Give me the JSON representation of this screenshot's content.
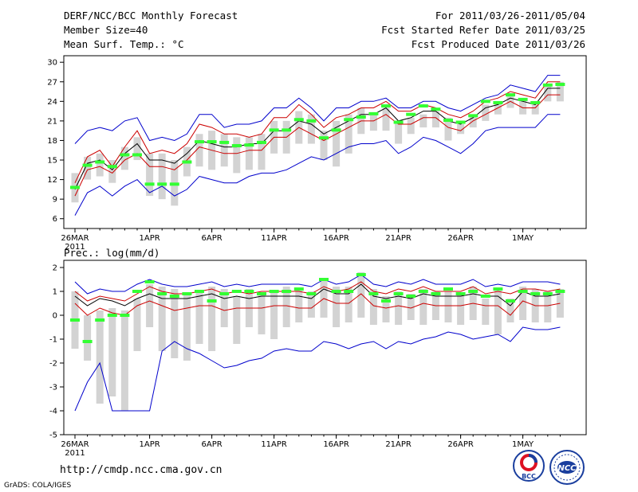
{
  "header": {
    "title": "DERF/NCC/BCC Monthly Forecast",
    "member": "Member Size=40",
    "variable": "Mean Surf. Temp.: °C",
    "period": "For 2011/03/26-2011/05/04",
    "started": "Fcst Started Refer Date 2011/03/25",
    "produced": "Fcst Produced Date 2011/03/26"
  },
  "footer": {
    "url": "http://cmdp.ncc.cma.gov.cn",
    "grads": "GrADS: COLA/IGES",
    "logo_bcc": "BCC",
    "logo_ncc": "NCC"
  },
  "colors": {
    "max_min": "#0000cc",
    "spread": "#cc0000",
    "mean": "#000000",
    "box": "#d3d3d3",
    "median": "#33ff33"
  },
  "chart_data": [
    {
      "type": "line",
      "id": "temp",
      "title": "",
      "ylim": [
        4.5,
        31
      ],
      "yticks": [
        6,
        9,
        12,
        15,
        18,
        21,
        24,
        27,
        30
      ],
      "xticks": [
        {
          "day": 0,
          "label": "26MAR",
          "sub": "2011"
        },
        {
          "day": 6,
          "label": "1APR"
        },
        {
          "day": 11,
          "label": "6APR"
        },
        {
          "day": 16,
          "label": "11APR"
        },
        {
          "day": 21,
          "label": "16APR"
        },
        {
          "day": 26,
          "label": "21APR"
        },
        {
          "day": 31,
          "label": "26APR"
        },
        {
          "day": 36,
          "label": "1MAY"
        }
      ],
      "series": [
        {
          "name": "max",
          "values": [
            17.5,
            19.5,
            20,
            19.5,
            21,
            21.5,
            18,
            18.5,
            18,
            19,
            22,
            22,
            20,
            20.5,
            20.5,
            21,
            23,
            23,
            24.5,
            23,
            21,
            23,
            23,
            24,
            24,
            24.5,
            23,
            23,
            24,
            24,
            23,
            22.5,
            23.5,
            24.5,
            25,
            26.5,
            26,
            25.5,
            28,
            28
          ]
        },
        {
          "name": "upper",
          "values": [
            11.5,
            15.5,
            16.5,
            14,
            17,
            19.5,
            16,
            16.5,
            16,
            17.5,
            20.5,
            20,
            19,
            19,
            18.5,
            19,
            21.5,
            21.5,
            23.5,
            22,
            20,
            21.5,
            22,
            23,
            23,
            24,
            22.5,
            22.5,
            23.5,
            23,
            22,
            21.5,
            22.5,
            24,
            24.5,
            25.5,
            25,
            24.5,
            27,
            27
          ]
        },
        {
          "name": "mean",
          "values": [
            10.5,
            14.5,
            15,
            13.5,
            16,
            17.5,
            15,
            15,
            14.5,
            16,
            18,
            17.5,
            17,
            17,
            17.5,
            17.5,
            19.5,
            19.5,
            21,
            20.5,
            19,
            20,
            21,
            22,
            22,
            23,
            21,
            21.5,
            22.5,
            22.5,
            21,
            20.5,
            21.5,
            23,
            23.5,
            24.5,
            24,
            23.5,
            26,
            26
          ]
        },
        {
          "name": "lower",
          "values": [
            9.5,
            13.5,
            14,
            13,
            15,
            16,
            14,
            14,
            13.5,
            15,
            17,
            16.5,
            16,
            16,
            16.5,
            16.5,
            18.5,
            18.5,
            20,
            19,
            18,
            19,
            20,
            21,
            21,
            22,
            20.5,
            20.5,
            21.5,
            21.5,
            20,
            19.5,
            21,
            22,
            23,
            24,
            23,
            23,
            25,
            25
          ]
        },
        {
          "name": "min",
          "values": [
            6.5,
            10,
            11,
            9.5,
            11,
            12,
            10,
            11,
            9.5,
            10.5,
            12.5,
            12,
            11.5,
            11.5,
            12.5,
            13,
            13,
            13.5,
            14.5,
            15.5,
            15,
            16,
            17,
            17.5,
            17.5,
            18,
            16,
            17,
            18.5,
            18,
            17,
            16,
            17.5,
            19.5,
            20,
            20,
            20,
            20,
            22,
            22
          ]
        },
        {
          "name": "box_high",
          "values": [
            13,
            15.5,
            16,
            15,
            17,
            18.5,
            16,
            16,
            15,
            17,
            19,
            19.5,
            19,
            18.5,
            18.5,
            19,
            21,
            21,
            22.5,
            22,
            19.5,
            21,
            22,
            23,
            22,
            23,
            21,
            21.5,
            22,
            22.5,
            21.5,
            20.5,
            22,
            23.5,
            24,
            25,
            24.5,
            24,
            26.5,
            27
          ]
        },
        {
          "name": "box_low",
          "values": [
            8.5,
            12,
            12.5,
            11.5,
            13.5,
            15,
            9.5,
            9,
            8,
            12.5,
            14,
            13.5,
            14,
            13,
            13.5,
            13.5,
            16,
            16,
            17.5,
            17.5,
            15,
            14,
            16,
            19,
            19.5,
            19.5,
            17.5,
            19,
            20,
            20,
            18,
            19,
            20,
            21,
            22,
            23,
            22,
            22,
            24,
            24
          ]
        },
        {
          "name": "median",
          "values": [
            10.8,
            14.2,
            14.7,
            14,
            15.8,
            15.8,
            11.3,
            11.3,
            11.3,
            14.7,
            17.8,
            17.8,
            17.7,
            17.2,
            17.3,
            17.7,
            19.6,
            19.6,
            21.2,
            21,
            18.4,
            19.6,
            21.2,
            21.6,
            22.1,
            23.3,
            20.8,
            22,
            23.3,
            22.8,
            21.1,
            20.8,
            21.8,
            24,
            23.8,
            25,
            24.3,
            23.8,
            26.5,
            26.6
          ]
        }
      ]
    },
    {
      "type": "line",
      "id": "prec",
      "title": "Prec.: log(mm/d)",
      "ylim": [
        -5,
        2.3
      ],
      "yticks": [
        -5,
        -4,
        -3,
        -2,
        -1,
        0,
        1,
        2
      ],
      "xticks": [
        {
          "day": 0,
          "label": "26MAR",
          "sub": "2011"
        },
        {
          "day": 6,
          "label": "1APR"
        },
        {
          "day": 11,
          "label": "6APR"
        },
        {
          "day": 16,
          "label": "11APR"
        },
        {
          "day": 21,
          "label": "16APR"
        },
        {
          "day": 26,
          "label": "21APR"
        },
        {
          "day": 31,
          "label": "26APR"
        },
        {
          "day": 36,
          "label": "1MAY"
        }
      ],
      "series": [
        {
          "name": "max",
          "values": [
            1.4,
            0.9,
            1.1,
            1,
            1,
            1.3,
            1.5,
            1.3,
            1.2,
            1.2,
            1.3,
            1.4,
            1.2,
            1.3,
            1.2,
            1.3,
            1.3,
            1.3,
            1.3,
            1.2,
            1.5,
            1.3,
            1.4,
            1.7,
            1.3,
            1.2,
            1.4,
            1.3,
            1.5,
            1.3,
            1.3,
            1.3,
            1.5,
            1.2,
            1.3,
            1.2,
            1.4,
            1.4,
            1.4,
            1.3
          ]
        },
        {
          "name": "upper",
          "values": [
            1,
            0.6,
            0.8,
            0.7,
            0.6,
            0.9,
            1.2,
            1,
            0.9,
            0.9,
            1,
            1.1,
            0.9,
            1,
            0.9,
            1,
            1,
            1,
            1,
            0.9,
            1.2,
            1,
            1.1,
            1.4,
            1,
            0.9,
            1.1,
            1,
            1.2,
            1,
            1,
            1,
            1.2,
            0.9,
            1,
            0.9,
            1.1,
            1.1,
            1,
            1.1
          ]
        },
        {
          "name": "mean",
          "values": [
            0.8,
            0.4,
            0.7,
            0.6,
            0.4,
            0.7,
            0.9,
            0.7,
            0.7,
            0.7,
            0.8,
            0.9,
            0.7,
            0.8,
            0.7,
            0.8,
            0.8,
            0.8,
            0.8,
            0.7,
            1.1,
            0.9,
            0.9,
            1.3,
            0.8,
            0.7,
            0.8,
            0.7,
            0.9,
            0.8,
            0.8,
            0.8,
            0.9,
            0.8,
            0.8,
            0.4,
            1,
            0.8,
            0.8,
            0.9
          ]
        },
        {
          "name": "lower",
          "values": [
            0.5,
            0,
            0.3,
            0.1,
            0,
            0.4,
            0.6,
            0.4,
            0.2,
            0.3,
            0.4,
            0.4,
            0.2,
            0.3,
            0.3,
            0.3,
            0.4,
            0.4,
            0.3,
            0.3,
            0.7,
            0.5,
            0.5,
            0.9,
            0.4,
            0.3,
            0.4,
            0.3,
            0.5,
            0.4,
            0.4,
            0.4,
            0.5,
            0.4,
            0.4,
            0,
            0.6,
            0.4,
            0.4,
            0.5
          ]
        },
        {
          "name": "min",
          "values": [
            -4,
            -2.8,
            -2,
            -4,
            -4,
            -4,
            -4,
            -1.5,
            -1.1,
            -1.4,
            -1.6,
            -1.9,
            -2.2,
            -2.1,
            -1.9,
            -1.8,
            -1.5,
            -1.4,
            -1.5,
            -1.5,
            -1.1,
            -1.2,
            -1.4,
            -1.2,
            -1.1,
            -1.4,
            -1.1,
            -1.2,
            -1,
            -0.9,
            -0.7,
            -0.8,
            -1,
            -0.9,
            -0.8,
            -1.1,
            -0.5,
            -0.6,
            -0.6,
            -0.5
          ]
        },
        {
          "name": "box_high",
          "values": [
            1,
            0,
            0.2,
            0.3,
            0.2,
            0.7,
            1.3,
            1.2,
            1.1,
            0.9,
            1,
            1.2,
            1.1,
            0.8,
            1.1,
            0.9,
            1,
            1.2,
            1.1,
            1,
            1.5,
            1.2,
            1.2,
            1.8,
            1.1,
            0.8,
            1,
            0.9,
            1.1,
            1,
            1,
            0.9,
            1.2,
            0.7,
            1.1,
            0.7,
            1.2,
            1.1,
            1,
            1.1
          ]
        },
        {
          "name": "box_low",
          "values": [
            -1.4,
            -1.9,
            -3.7,
            -3.4,
            -4,
            -1.5,
            -0.5,
            -1.5,
            -1.8,
            -1.9,
            -1.2,
            -1.5,
            -0.5,
            -1.2,
            -0.5,
            -0.8,
            -1,
            -0.5,
            -0.3,
            -0.1,
            -0.1,
            -0.5,
            -0.3,
            -0.1,
            -0.4,
            -0.3,
            -0.4,
            -0.2,
            -0.4,
            -0.2,
            -0.3,
            -0.4,
            -0.2,
            -0.4,
            -0.8,
            -0.3,
            -0.2,
            -0.3,
            -0.3,
            -0.1
          ]
        },
        {
          "name": "median",
          "values": [
            -0.2,
            -1.1,
            -0.2,
            0,
            0,
            1,
            1.4,
            0.9,
            0.8,
            0.9,
            1,
            0.6,
            0.9,
            1,
            1,
            0.9,
            1,
            1,
            1.1,
            0.9,
            1.5,
            1,
            1,
            1.7,
            0.9,
            0.6,
            0.9,
            0.8,
            1,
            0.9,
            1.1,
            0.9,
            1,
            0.8,
            1.1,
            0.6,
            1,
            0.9,
            0.9,
            1
          ]
        }
      ]
    }
  ]
}
